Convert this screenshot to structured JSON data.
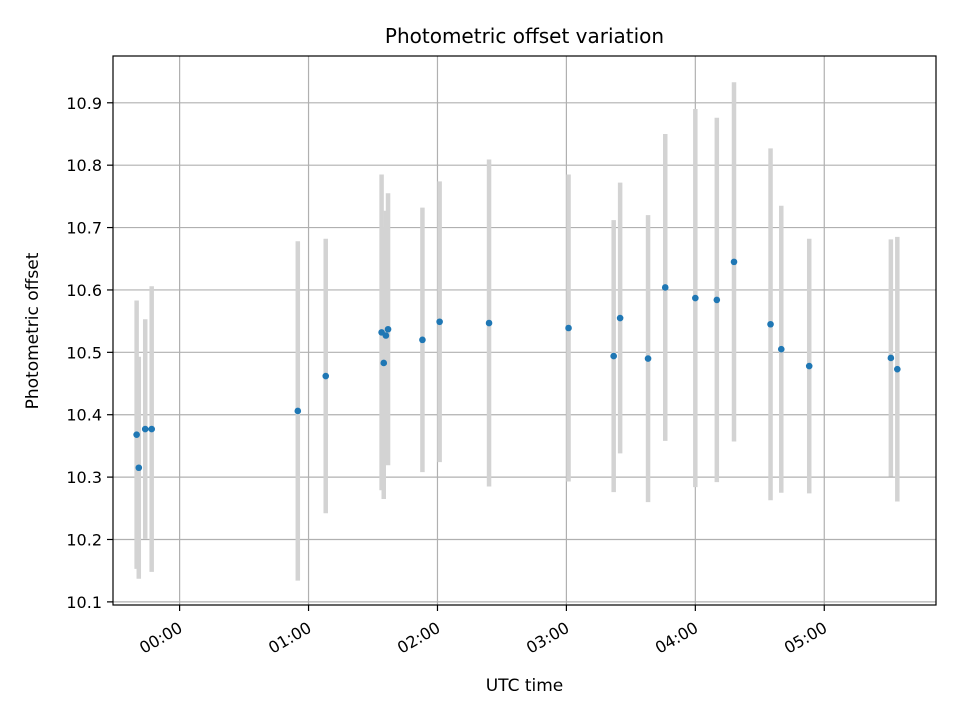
{
  "chart_data": {
    "type": "scatter",
    "title": "Photometric offset variation",
    "xlabel": "UTC time",
    "ylabel": "Photometric offset",
    "x_unit": "UTC time (HH:MM)",
    "xlim": [
      "-00:31",
      "05:52"
    ],
    "ylim": [
      10.095,
      10.975
    ],
    "x_ticks": [
      "00:00",
      "01:00",
      "02:00",
      "03:00",
      "04:00",
      "05:00"
    ],
    "y_ticks": [
      "10.1",
      "10.2",
      "10.3",
      "10.4",
      "10.5",
      "10.6",
      "10.7",
      "10.8",
      "10.9"
    ],
    "grid": true,
    "legend": "none",
    "colors": {
      "marker": "#1f77b4",
      "errorbar": "#d3d3d3",
      "grid": "#b0b0b0"
    },
    "series": [
      {
        "error_type": "vertical error bars",
        "points": [
          {
            "x": "-00:20",
            "y": 10.368,
            "err": 0.215
          },
          {
            "x": "-00:19",
            "y": 10.315,
            "err": 0.178
          },
          {
            "x": "-00:16",
            "y": 10.377,
            "err": 0.176
          },
          {
            "x": "-00:13",
            "y": 10.377,
            "err": 0.229
          },
          {
            "x": "00:55",
            "y": 10.406,
            "err": 0.272
          },
          {
            "x": "01:08",
            "y": 10.462,
            "err": 0.22
          },
          {
            "x": "01:34",
            "y": 10.532,
            "err": 0.253
          },
          {
            "x": "01:35",
            "y": 10.483,
            "err": 0.218
          },
          {
            "x": "01:36",
            "y": 10.527,
            "err": 0.2
          },
          {
            "x": "01:37",
            "y": 10.537,
            "err": 0.218
          },
          {
            "x": "01:53",
            "y": 10.52,
            "err": 0.212
          },
          {
            "x": "02:01",
            "y": 10.549,
            "err": 0.225
          },
          {
            "x": "02:24",
            "y": 10.547,
            "err": 0.262
          },
          {
            "x": "03:01",
            "y": 10.539,
            "err": 0.246
          },
          {
            "x": "03:22",
            "y": 10.494,
            "err": 0.218
          },
          {
            "x": "03:25",
            "y": 10.555,
            "err": 0.217
          },
          {
            "x": "03:38",
            "y": 10.49,
            "err": 0.23
          },
          {
            "x": "03:46",
            "y": 10.604,
            "err": 0.246
          },
          {
            "x": "04:00",
            "y": 10.587,
            "err": 0.303
          },
          {
            "x": "04:10",
            "y": 10.584,
            "err": 0.292
          },
          {
            "x": "04:18",
            "y": 10.645,
            "err": 0.288
          },
          {
            "x": "04:35",
            "y": 10.545,
            "err": 0.282
          },
          {
            "x": "04:40",
            "y": 10.505,
            "err": 0.23
          },
          {
            "x": "04:53",
            "y": 10.478,
            "err": 0.204
          },
          {
            "x": "05:31",
            "y": 10.491,
            "err": 0.19
          },
          {
            "x": "05:34",
            "y": 10.473,
            "err": 0.212
          }
        ]
      }
    ]
  }
}
